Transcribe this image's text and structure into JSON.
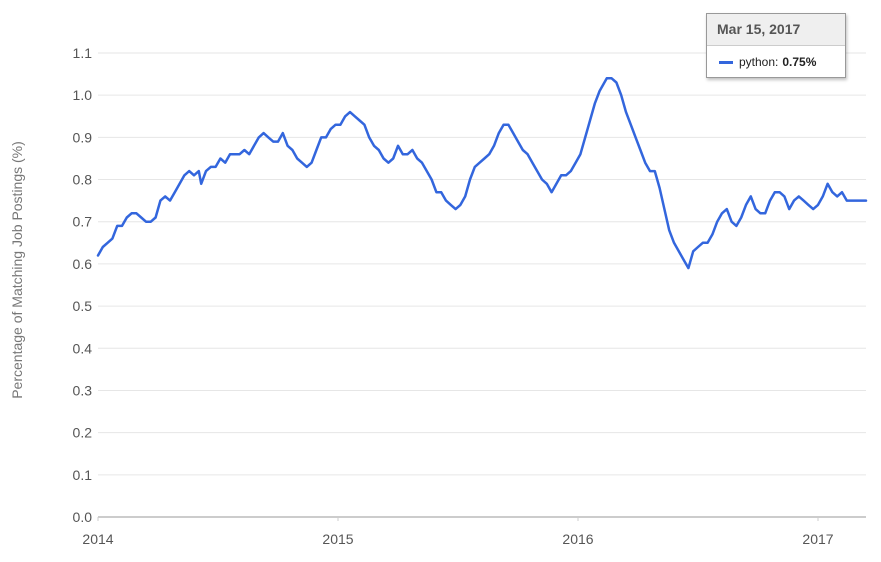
{
  "colors": {
    "series": "#3366dd",
    "grid": "#e6e6e6",
    "axis": "#cccccc",
    "text": "#555555"
  },
  "tooltip": {
    "date": "Mar 15, 2017",
    "series_name": "python",
    "separator": ":",
    "value": "0.75%"
  },
  "chart_data": {
    "type": "line",
    "title": "",
    "xlabel": "",
    "ylabel": "Percentage of Matching Job Postings (%)",
    "ylim": [
      0.0,
      1.1
    ],
    "y_ticks": [
      "0.0",
      "0.1",
      "0.2",
      "0.3",
      "0.4",
      "0.5",
      "0.6",
      "0.7",
      "0.8",
      "0.9",
      "1.0",
      "1.1"
    ],
    "x_ticks": [
      "2014",
      "2015",
      "2016",
      "2017"
    ],
    "xlim": [
      2014.0,
      2017.2
    ],
    "grid": true,
    "series": [
      {
        "name": "python",
        "points": [
          [
            2014.0,
            0.62
          ],
          [
            2014.02,
            0.64
          ],
          [
            2014.04,
            0.65
          ],
          [
            2014.06,
            0.66
          ],
          [
            2014.08,
            0.69
          ],
          [
            2014.1,
            0.69
          ],
          [
            2014.12,
            0.71
          ],
          [
            2014.14,
            0.72
          ],
          [
            2014.16,
            0.72
          ],
          [
            2014.18,
            0.71
          ],
          [
            2014.2,
            0.7
          ],
          [
            2014.22,
            0.7
          ],
          [
            2014.24,
            0.71
          ],
          [
            2014.26,
            0.75
          ],
          [
            2014.28,
            0.76
          ],
          [
            2014.3,
            0.75
          ],
          [
            2014.32,
            0.77
          ],
          [
            2014.34,
            0.79
          ],
          [
            2014.36,
            0.81
          ],
          [
            2014.38,
            0.82
          ],
          [
            2014.4,
            0.81
          ],
          [
            2014.42,
            0.82
          ],
          [
            2014.43,
            0.79
          ],
          [
            2014.45,
            0.82
          ],
          [
            2014.47,
            0.83
          ],
          [
            2014.49,
            0.83
          ],
          [
            2014.51,
            0.85
          ],
          [
            2014.53,
            0.84
          ],
          [
            2014.55,
            0.86
          ],
          [
            2014.57,
            0.86
          ],
          [
            2014.59,
            0.86
          ],
          [
            2014.61,
            0.87
          ],
          [
            2014.63,
            0.86
          ],
          [
            2014.65,
            0.88
          ],
          [
            2014.67,
            0.9
          ],
          [
            2014.69,
            0.91
          ],
          [
            2014.71,
            0.9
          ],
          [
            2014.73,
            0.89
          ],
          [
            2014.75,
            0.89
          ],
          [
            2014.77,
            0.91
          ],
          [
            2014.79,
            0.88
          ],
          [
            2014.81,
            0.87
          ],
          [
            2014.83,
            0.85
          ],
          [
            2014.85,
            0.84
          ],
          [
            2014.87,
            0.83
          ],
          [
            2014.89,
            0.84
          ],
          [
            2014.91,
            0.87
          ],
          [
            2014.93,
            0.9
          ],
          [
            2014.95,
            0.9
          ],
          [
            2014.97,
            0.92
          ],
          [
            2014.99,
            0.93
          ],
          [
            2015.01,
            0.93
          ],
          [
            2015.03,
            0.95
          ],
          [
            2015.05,
            0.96
          ],
          [
            2015.07,
            0.95
          ],
          [
            2015.09,
            0.94
          ],
          [
            2015.11,
            0.93
          ],
          [
            2015.13,
            0.9
          ],
          [
            2015.15,
            0.88
          ],
          [
            2015.17,
            0.87
          ],
          [
            2015.19,
            0.85
          ],
          [
            2015.21,
            0.84
          ],
          [
            2015.23,
            0.85
          ],
          [
            2015.25,
            0.88
          ],
          [
            2015.27,
            0.86
          ],
          [
            2015.29,
            0.86
          ],
          [
            2015.31,
            0.87
          ],
          [
            2015.33,
            0.85
          ],
          [
            2015.35,
            0.84
          ],
          [
            2015.37,
            0.82
          ],
          [
            2015.39,
            0.8
          ],
          [
            2015.41,
            0.77
          ],
          [
            2015.43,
            0.77
          ],
          [
            2015.45,
            0.75
          ],
          [
            2015.47,
            0.74
          ],
          [
            2015.49,
            0.73
          ],
          [
            2015.51,
            0.74
          ],
          [
            2015.53,
            0.76
          ],
          [
            2015.55,
            0.8
          ],
          [
            2015.57,
            0.83
          ],
          [
            2015.59,
            0.84
          ],
          [
            2015.61,
            0.85
          ],
          [
            2015.63,
            0.86
          ],
          [
            2015.65,
            0.88
          ],
          [
            2015.67,
            0.91
          ],
          [
            2015.69,
            0.93
          ],
          [
            2015.71,
            0.93
          ],
          [
            2015.73,
            0.91
          ],
          [
            2015.75,
            0.89
          ],
          [
            2015.77,
            0.87
          ],
          [
            2015.79,
            0.86
          ],
          [
            2015.81,
            0.84
          ],
          [
            2015.83,
            0.82
          ],
          [
            2015.85,
            0.8
          ],
          [
            2015.87,
            0.79
          ],
          [
            2015.89,
            0.77
          ],
          [
            2015.91,
            0.79
          ],
          [
            2015.93,
            0.81
          ],
          [
            2015.95,
            0.81
          ],
          [
            2015.97,
            0.82
          ],
          [
            2015.99,
            0.84
          ],
          [
            2016.01,
            0.86
          ],
          [
            2016.03,
            0.9
          ],
          [
            2016.05,
            0.94
          ],
          [
            2016.07,
            0.98
          ],
          [
            2016.09,
            1.01
          ],
          [
            2016.11,
            1.03
          ],
          [
            2016.12,
            1.04
          ],
          [
            2016.14,
            1.04
          ],
          [
            2016.16,
            1.03
          ],
          [
            2016.18,
            1.0
          ],
          [
            2016.2,
            0.96
          ],
          [
            2016.22,
            0.93
          ],
          [
            2016.24,
            0.9
          ],
          [
            2016.26,
            0.87
          ],
          [
            2016.28,
            0.84
          ],
          [
            2016.3,
            0.82
          ],
          [
            2016.32,
            0.82
          ],
          [
            2016.34,
            0.78
          ],
          [
            2016.36,
            0.73
          ],
          [
            2016.38,
            0.68
          ],
          [
            2016.4,
            0.65
          ],
          [
            2016.42,
            0.63
          ],
          [
            2016.44,
            0.61
          ],
          [
            2016.46,
            0.59
          ],
          [
            2016.48,
            0.63
          ],
          [
            2016.5,
            0.64
          ],
          [
            2016.52,
            0.65
          ],
          [
            2016.54,
            0.65
          ],
          [
            2016.56,
            0.67
          ],
          [
            2016.58,
            0.7
          ],
          [
            2016.6,
            0.72
          ],
          [
            2016.62,
            0.73
          ],
          [
            2016.64,
            0.7
          ],
          [
            2016.66,
            0.69
          ],
          [
            2016.68,
            0.71
          ],
          [
            2016.7,
            0.74
          ],
          [
            2016.72,
            0.76
          ],
          [
            2016.74,
            0.73
          ],
          [
            2016.76,
            0.72
          ],
          [
            2016.78,
            0.72
          ],
          [
            2016.8,
            0.75
          ],
          [
            2016.82,
            0.77
          ],
          [
            2016.84,
            0.77
          ],
          [
            2016.86,
            0.76
          ],
          [
            2016.88,
            0.73
          ],
          [
            2016.9,
            0.75
          ],
          [
            2016.92,
            0.76
          ],
          [
            2016.94,
            0.75
          ],
          [
            2016.96,
            0.74
          ],
          [
            2016.98,
            0.73
          ],
          [
            2017.0,
            0.74
          ],
          [
            2017.02,
            0.76
          ],
          [
            2017.04,
            0.79
          ],
          [
            2017.06,
            0.77
          ],
          [
            2017.08,
            0.76
          ],
          [
            2017.1,
            0.77
          ],
          [
            2017.12,
            0.75
          ],
          [
            2017.14,
            0.75
          ],
          [
            2017.16,
            0.75
          ],
          [
            2017.18,
            0.75
          ],
          [
            2017.2,
            0.75
          ]
        ]
      }
    ]
  }
}
